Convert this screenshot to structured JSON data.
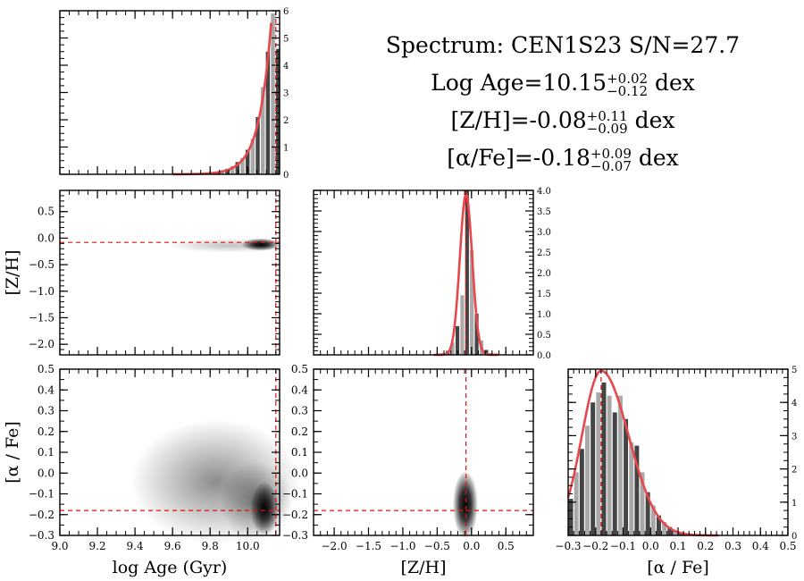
{
  "title": {
    "line1": "Spectrum: CEN1S23 S/N=27.7",
    "age_prefix": "Log Age=10.15",
    "age_err_up": "+0.02",
    "age_err_down": "−0.12",
    "age_unit": "dex",
    "zh_prefix": "[Z/H]=-0.08",
    "zh_err_up": "+0.11",
    "zh_err_down": "−0.09",
    "zh_unit": "dex",
    "afe_prefix": "[α/Fe]=-0.18",
    "afe_err_up": "+0.09",
    "afe_err_down": "−0.07",
    "afe_unit": "dex"
  },
  "colors": {
    "fit_curve": "#e8474c",
    "marker_line": "#e01010",
    "axis": "#000000"
  },
  "chart_data": [
    {
      "id": "age-hist",
      "type": "bar",
      "title": "",
      "xlabel": "",
      "ylabel": "",
      "xlim": [
        9.0,
        10.17
      ],
      "ylim": [
        0,
        6
      ],
      "yticks": [
        0,
        1,
        2,
        3,
        4,
        5,
        6
      ],
      "bin_width": 0.027,
      "bin_starts": [
        9.77,
        9.797,
        9.824,
        9.851,
        9.878,
        9.905,
        9.932,
        9.959,
        9.986,
        10.013,
        10.04,
        10.067,
        10.094,
        10.121,
        10.148
      ],
      "values": [
        0.03,
        0.06,
        0.1,
        0.15,
        0.2,
        0.3,
        0.45,
        0.6,
        0.9,
        1.3,
        2.1,
        3.2,
        4.5,
        5.9,
        4.6
      ],
      "fit_peak": 6.0,
      "marker_x": 10.15
    },
    {
      "id": "zh-vs-age",
      "type": "heatmap",
      "xlabel": "",
      "ylabel": "[Z/H]",
      "xlim": [
        9.0,
        10.17
      ],
      "ylim": [
        -2.2,
        0.9
      ],
      "yticks": [
        0.5,
        0.0,
        -0.5,
        -1.0,
        -1.5,
        -2.0
      ],
      "ytick_labels": [
        "0.5",
        "0.0",
        "−0.5",
        "−1.0",
        "−1.5",
        "−2.0"
      ],
      "density_center": [
        10.07,
        -0.12
      ],
      "marker_x": 10.15,
      "marker_y": -0.08
    },
    {
      "id": "zh-hist",
      "type": "bar",
      "xlabel": "",
      "ylabel": "",
      "xlim": [
        -2.3,
        0.9
      ],
      "ylim": [
        0,
        4.0
      ],
      "yticks": [
        0.0,
        0.5,
        1.0,
        1.5,
        2.0,
        2.5,
        3.0,
        3.5,
        4.0
      ],
      "ytick_labels": [
        "0.0",
        "0.5",
        "1.0",
        "1.5",
        "2.0",
        "2.5",
        "3.0",
        "3.5",
        "4.0"
      ],
      "bin_width": 0.07,
      "bin_starts": [
        -0.52,
        -0.45,
        -0.38,
        -0.31,
        -0.24,
        -0.17,
        -0.1,
        -0.03,
        0.04,
        0.11,
        0.18,
        0.25,
        0.32
      ],
      "values": [
        0.03,
        0.05,
        0.1,
        0.3,
        0.7,
        1.45,
        4.0,
        2.55,
        1.0,
        0.35,
        0.12,
        0.05,
        0.03
      ],
      "fit_mean": -0.08,
      "fit_peak": 3.9,
      "fit_sigma": 0.09,
      "marker_x": -0.08
    },
    {
      "id": "afe-vs-age",
      "type": "heatmap",
      "xlabel": "log Age (Gyr)",
      "ylabel": "[α / Fe]",
      "xlim": [
        9.0,
        10.17
      ],
      "ylim": [
        -0.3,
        0.5
      ],
      "xticks": [
        9.0,
        9.2,
        9.4,
        9.6,
        9.8,
        10.0
      ],
      "xtick_labels": [
        "9.0",
        "9.2",
        "9.4",
        "9.6",
        "9.8",
        "10.0"
      ],
      "yticks": [
        -0.3,
        -0.2,
        -0.1,
        0.0,
        0.1,
        0.2,
        0.3,
        0.4,
        0.5
      ],
      "ytick_labels": [
        "−0.3",
        "−0.2",
        "−0.1",
        "0.0",
        "0.1",
        "0.2",
        "0.3",
        "0.4",
        "0.5"
      ],
      "density_center": [
        10.09,
        -0.17
      ],
      "marker_x": 10.15,
      "marker_y": -0.18
    },
    {
      "id": "afe-vs-zh",
      "type": "heatmap",
      "xlabel": "[Z/H]",
      "ylabel": "",
      "xlim": [
        -2.3,
        0.9
      ],
      "ylim": [
        -0.3,
        0.5
      ],
      "xticks": [
        -2.0,
        -1.5,
        -1.0,
        -0.5,
        0.0,
        0.5
      ],
      "xtick_labels": [
        "−2.0",
        "−1.5",
        "−1.0",
        "−0.5",
        "0.0",
        "0.5"
      ],
      "yticks": [
        -0.3,
        -0.2,
        -0.1,
        0.0,
        0.1,
        0.2,
        0.3,
        0.4,
        0.5
      ],
      "ytick_labels": [
        "−0.3",
        "−0.2",
        "−0.1",
        "0.0",
        "0.1",
        "0.2",
        "0.3",
        "0.4",
        "0.5"
      ],
      "density_center": [
        -0.09,
        -0.17
      ],
      "marker_x": -0.08,
      "marker_y": -0.18
    },
    {
      "id": "afe-hist",
      "type": "bar",
      "xlabel": "[α / Fe]",
      "ylabel": "",
      "xlim": [
        -0.3,
        0.5
      ],
      "ylim": [
        0,
        5
      ],
      "xticks": [
        -0.3,
        -0.2,
        -0.1,
        0.0,
        0.1,
        0.2,
        0.3,
        0.4,
        0.5
      ],
      "xtick_labels": [
        "−0.3",
        "−0.2",
        "−0.1",
        "0.0",
        "0.1",
        "0.2",
        "0.3",
        "0.4",
        "0.5"
      ],
      "yticks": [
        0,
        1,
        2,
        3,
        4,
        5
      ],
      "bin_width": 0.02,
      "bin_starts": [
        -0.3,
        -0.28,
        -0.26,
        -0.24,
        -0.22,
        -0.2,
        -0.18,
        -0.16,
        -0.14,
        -0.12,
        -0.1,
        -0.08,
        -0.06,
        -0.04,
        -0.02,
        0.0,
        0.02,
        0.04,
        0.06,
        0.08,
        0.1,
        0.12,
        0.14,
        0.16,
        0.18,
        0.2,
        0.22
      ],
      "values": [
        1.1,
        1.9,
        2.6,
        3.3,
        4.0,
        4.3,
        4.6,
        4.2,
        3.7,
        4.2,
        3.5,
        2.8,
        2.7,
        1.9,
        1.3,
        0.9,
        0.6,
        0.4,
        0.25,
        0.15,
        0.1,
        0.06,
        0.04,
        0.03,
        0.02,
        0.01,
        0.01
      ],
      "fit_mode": -0.18,
      "fit_peak": 4.95,
      "fit_sigma_left": 0.07,
      "fit_sigma_right": 0.1,
      "marker_x": -0.18
    }
  ]
}
